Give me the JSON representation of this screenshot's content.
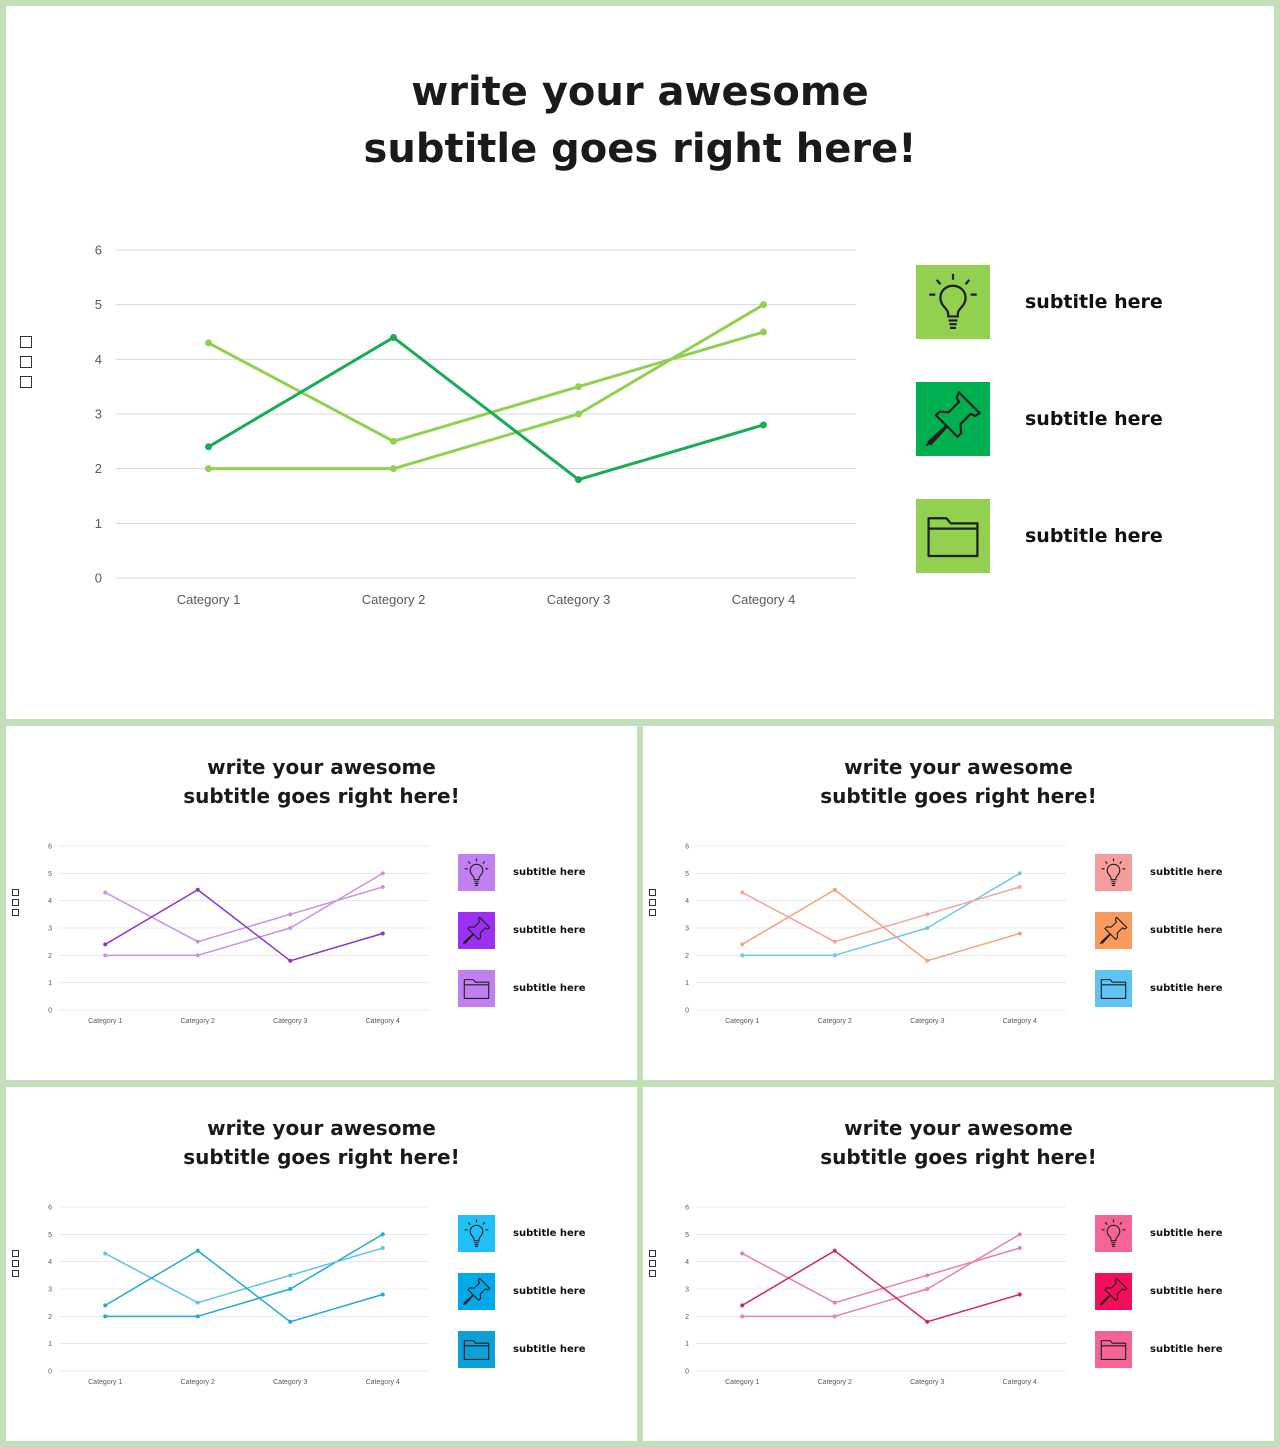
{
  "slides": [
    {
      "title_line1": "write your awesome",
      "title_line2": "subtitle goes right here!",
      "colors": {
        "series": [
          "#1aab56",
          "#92d050",
          "#92d050"
        ],
        "icons": [
          "#92d050",
          "#00b050",
          "#92d050"
        ]
      },
      "legend": [
        {
          "icon": "lightbulb-icon",
          "label": "subtitle here"
        },
        {
          "icon": "pushpin-icon",
          "label": "subtitle here"
        },
        {
          "icon": "folder-icon",
          "label": "subtitle here"
        }
      ],
      "side_marks": [
        "□",
        "□",
        "□"
      ]
    },
    {
      "title_line1": "write your awesome",
      "title_line2": "subtitle goes right here!",
      "colors": {
        "series": [
          "#8a33d6",
          "#c792ea",
          "#c792ea"
        ],
        "icons": [
          "#c17ff0",
          "#9b30f2",
          "#c17ff0"
        ]
      },
      "legend": [
        {
          "icon": "lightbulb-icon",
          "label": "subtitle here"
        },
        {
          "icon": "pushpin-icon",
          "label": "subtitle here"
        },
        {
          "icon": "folder-icon",
          "label": "subtitle here"
        }
      ],
      "side_marks": [
        "□",
        "□",
        "□"
      ]
    },
    {
      "title_line1": "write your awesome",
      "title_line2": "subtitle goes right here!",
      "colors": {
        "series": [
          "#f4a07a",
          "#f4a3a0",
          "#6cc8f0"
        ],
        "icons": [
          "#f59d9d",
          "#f8995d",
          "#5fc4f4"
        ]
      },
      "legend": [
        {
          "icon": "lightbulb-icon",
          "label": "subtitle here"
        },
        {
          "icon": "pushpin-icon",
          "label": "subtitle here"
        },
        {
          "icon": "folder-icon",
          "label": "subtitle here"
        }
      ],
      "side_marks": [
        "□",
        "□",
        "□"
      ]
    },
    {
      "title_line1": "write your awesome",
      "title_line2": "subtitle goes right here!",
      "colors": {
        "series": [
          "#22a9d6",
          "#5fc4e6",
          "#22a9d6"
        ],
        "icons": [
          "#1fc0f7",
          "#00a9ea",
          "#0e9fd8"
        ]
      },
      "legend": [
        {
          "icon": "lightbulb-icon",
          "label": "subtitle here"
        },
        {
          "icon": "pushpin-icon",
          "label": "subtitle here"
        },
        {
          "icon": "folder-icon",
          "label": "subtitle here"
        }
      ],
      "side_marks": [
        "□",
        "□",
        "□"
      ]
    },
    {
      "title_line1": "write your awesome",
      "title_line2": "subtitle goes right here!",
      "colors": {
        "series": [
          "#d2216a",
          "#ea80a5",
          "#ea80a5"
        ],
        "icons": [
          "#f46495",
          "#f20e5a",
          "#f46495"
        ]
      },
      "legend": [
        {
          "icon": "lightbulb-icon",
          "label": "subtitle here"
        },
        {
          "icon": "pushpin-icon",
          "label": "subtitle here"
        },
        {
          "icon": "folder-icon",
          "label": "subtitle here"
        }
      ],
      "side_marks": [
        "□",
        "□",
        "□"
      ]
    }
  ],
  "chart_data": {
    "type": "line",
    "title": "",
    "xlabel": "",
    "ylabel": "",
    "categories": [
      "Category 1",
      "Category 2",
      "Category 3",
      "Category 4"
    ],
    "y_ticks": [
      "0",
      "1",
      "2",
      "3",
      "4",
      "5",
      "6"
    ],
    "ylim": [
      0,
      6
    ],
    "grid": true,
    "legend": "none",
    "series": [
      {
        "values": [
          2.4,
          4.4,
          1.8,
          2.8
        ]
      },
      {
        "values": [
          4.3,
          2.5,
          3.5,
          4.5
        ]
      },
      {
        "values": [
          2,
          2,
          3,
          5
        ]
      }
    ]
  }
}
